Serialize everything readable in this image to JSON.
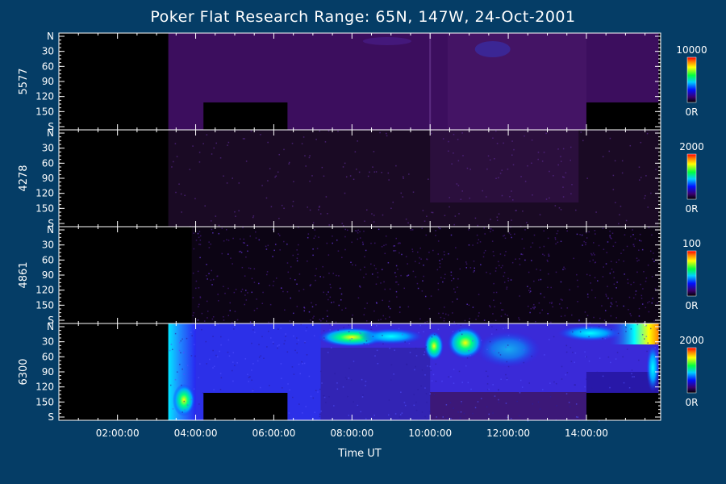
{
  "chart_data": {
    "type": "heatmap",
    "title": "Poker Flat Research Range: 65N, 147W, 24-Oct-2001",
    "xlabel": "Time UT",
    "x_ticks": [
      "02:00:00",
      "04:00:00",
      "06:00:00",
      "08:00:00",
      "10:00:00",
      "12:00:00",
      "14:00:00"
    ],
    "xlim_hours": [
      0.5,
      15.9
    ],
    "y_ticks": [
      "N",
      "30",
      "60",
      "90",
      "120",
      "150",
      "S"
    ],
    "ylim": [
      0,
      180
    ],
    "panels": [
      {
        "ylabel": "5577",
        "colorbar_max": "10000",
        "colorbar_min": "0R"
      },
      {
        "ylabel": "4278",
        "colorbar_max": "2000",
        "colorbar_min": "0R"
      },
      {
        "ylabel": "4861",
        "colorbar_max": "100",
        "colorbar_min": "0R"
      },
      {
        "ylabel": "6300",
        "colorbar_max": "2000",
        "colorbar_min": "0R"
      }
    ]
  }
}
